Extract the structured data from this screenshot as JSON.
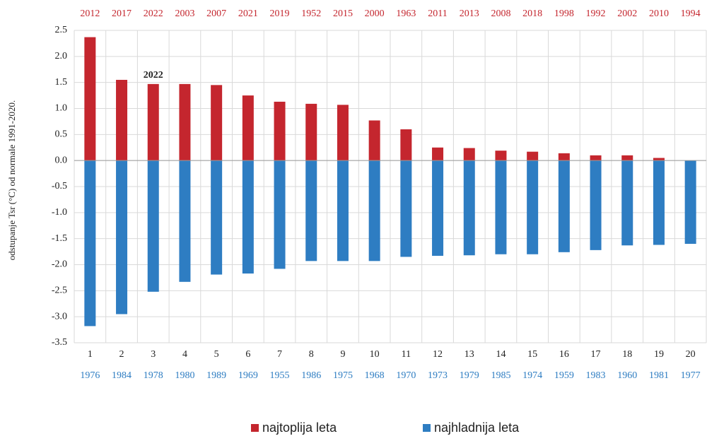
{
  "chart_data": {
    "type": "bar",
    "y_label": "odstupanje Tsr (°C) od normale 1991-2020.",
    "categories": [
      "1",
      "2",
      "3",
      "4",
      "5",
      "6",
      "7",
      "8",
      "9",
      "10",
      "11",
      "12",
      "13",
      "14",
      "15",
      "16",
      "17",
      "18",
      "19",
      "20"
    ],
    "top_labels": [
      "2012",
      "2017",
      "2022",
      "2003",
      "2007",
      "2021",
      "2019",
      "1952",
      "2015",
      "2000",
      "1963",
      "2011",
      "2013",
      "2008",
      "2018",
      "1998",
      "1992",
      "2002",
      "2010",
      "1994"
    ],
    "bottom_labels": [
      "1976",
      "1984",
      "1978",
      "1980",
      "1989",
      "1969",
      "1955",
      "1986",
      "1975",
      "1968",
      "1970",
      "1973",
      "1979",
      "1985",
      "1974",
      "1959",
      "1983",
      "1960",
      "1981",
      "1977"
    ],
    "series": [
      {
        "name": "najtoplija leta",
        "color": "#c4262e",
        "values": [
          2.37,
          1.55,
          1.47,
          1.47,
          1.45,
          1.25,
          1.13,
          1.09,
          1.07,
          0.77,
          0.6,
          0.25,
          0.24,
          0.19,
          0.17,
          0.14,
          0.1,
          0.1,
          0.05,
          0.0
        ]
      },
      {
        "name": "najhladnija leta",
        "color": "#2e7dc2",
        "values": [
          -3.18,
          -2.95,
          -2.52,
          -2.33,
          -2.19,
          -2.17,
          -2.08,
          -1.93,
          -1.93,
          -1.93,
          -1.85,
          -1.83,
          -1.82,
          -1.8,
          -1.8,
          -1.76,
          -1.72,
          -1.63,
          -1.62,
          -1.6
        ]
      }
    ],
    "annotations": [
      {
        "text": "2022",
        "category": "3"
      }
    ],
    "ylim": [
      -3.5,
      2.5
    ],
    "yticks": [
      2.5,
      {
        "value": 2,
        "label": "2.0"
      },
      1.5,
      {
        "value": 1,
        "label": "1.0"
      },
      0.5,
      {
        "value": 0,
        "label": "0.0"
      },
      -0.5,
      {
        "value": -1,
        "label": "-1.0"
      },
      -1.5,
      {
        "value": -2,
        "label": "-2.0"
      },
      -2.5,
      {
        "value": -3,
        "label": "-3.0"
      },
      -3.5
    ],
    "grid": true
  }
}
